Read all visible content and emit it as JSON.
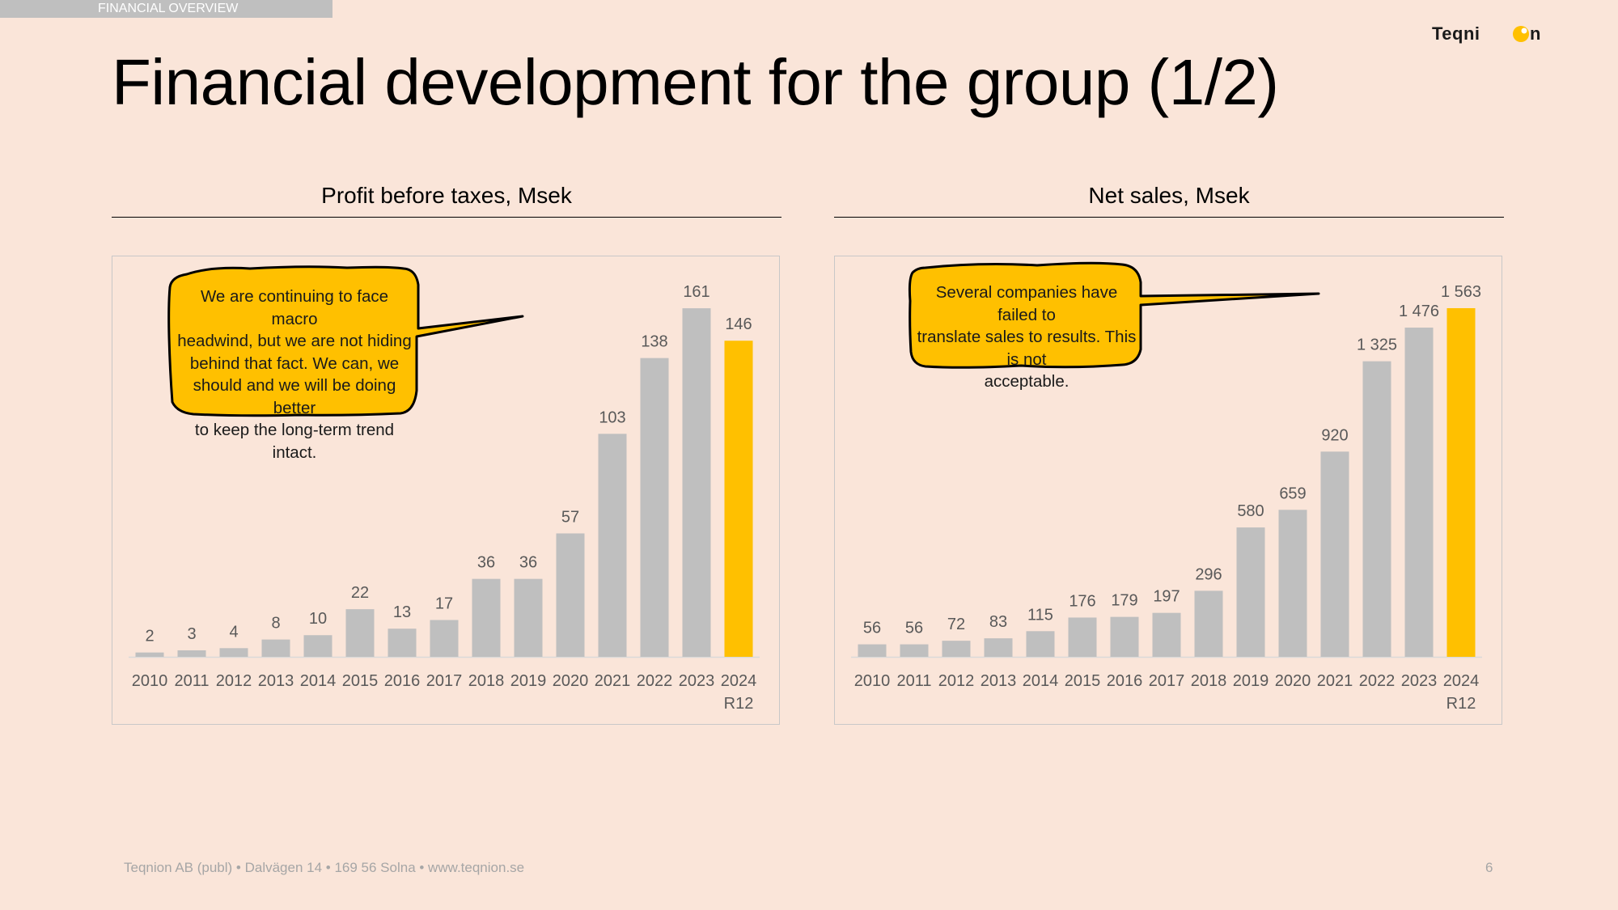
{
  "header": {
    "section_tag": "FINANCIAL OVERVIEW",
    "brand_logo_text": "Teqnion",
    "title": "Financial development for the group (1/2)"
  },
  "colors": {
    "background": "#fae5d9",
    "bar_gray": "#bfbfbf",
    "bar_highlight": "#ffc000",
    "callout_fill": "#ffc000",
    "label_gray": "#595959"
  },
  "callouts": {
    "profit": [
      "We are continuing to face macro",
      "headwind, but we are not hiding",
      "behind that fact. We can, we",
      "should and we will be doing better",
      "to keep the long-term trend intact."
    ],
    "sales": [
      "Several companies have failed to",
      "translate sales to results. This is not",
      "acceptable."
    ]
  },
  "chart_data": [
    {
      "type": "bar",
      "title": "Profit before taxes, Msek",
      "categories": [
        "2010",
        "2011",
        "2012",
        "2013",
        "2014",
        "2015",
        "2016",
        "2017",
        "2018",
        "2019",
        "2020",
        "2021",
        "2022",
        "2023",
        "2024 R12"
      ],
      "values": [
        2,
        3,
        4,
        8,
        10,
        22,
        13,
        17,
        36,
        36,
        57,
        103,
        138,
        161,
        146
      ],
      "value_labels": [
        "2",
        "3",
        "4",
        "8",
        "10",
        "22",
        "13",
        "17",
        "36",
        "36",
        "57",
        "103",
        "138",
        "161",
        "146"
      ],
      "highlight_index": 14,
      "ylim": [
        0,
        170
      ],
      "grid": false,
      "legend": false
    },
    {
      "type": "bar",
      "title": "Net sales, Msek",
      "categories": [
        "2010",
        "2011",
        "2012",
        "2013",
        "2014",
        "2015",
        "2016",
        "2017",
        "2018",
        "2019",
        "2020",
        "2021",
        "2022",
        "2023",
        "2024 R12"
      ],
      "values": [
        56,
        56,
        72,
        83,
        115,
        176,
        179,
        197,
        296,
        580,
        659,
        920,
        1325,
        1476,
        1563
      ],
      "value_labels": [
        "56",
        "56",
        "72",
        "83",
        "115",
        "176",
        "179",
        "197",
        "296",
        "580",
        "659",
        "920",
        "1 325",
        "1 476",
        "1 563"
      ],
      "highlight_index": 14,
      "ylim": [
        0,
        1650
      ],
      "grid": false,
      "legend": false
    }
  ],
  "footer": {
    "company": "Teqnion AB (publ) • Dalvägen 14 • 169 56 Solna • www.teqnion.se",
    "page_number": "6"
  }
}
